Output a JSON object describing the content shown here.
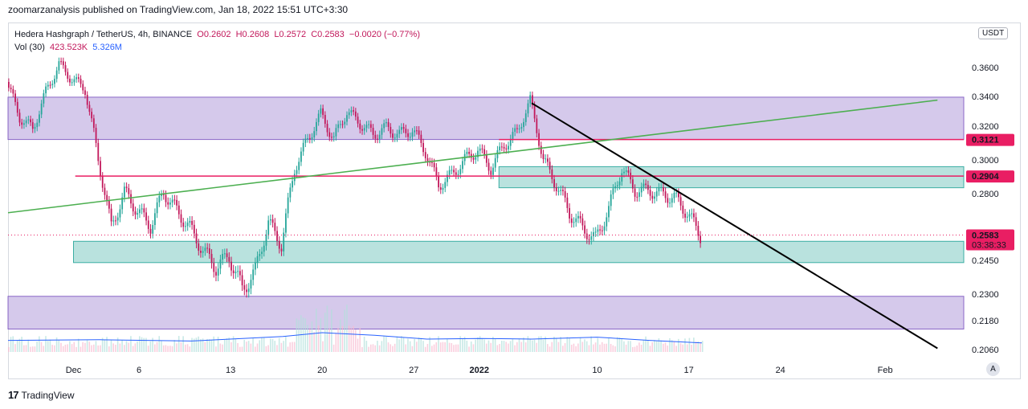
{
  "header": {
    "publish_line": "zoomarzanalysis published on TradingView.com, Jan 18, 2022 15:51 UTC+3:30"
  },
  "legend": {
    "symbol": "Hedera Hashgraph / TetherUS, 4h, BINANCE",
    "open": "O0.2602",
    "high": "H0.2608",
    "low": "L0.2572",
    "close": "C0.2583",
    "change": "−0.0020 (−0.77%)",
    "vol_title": "Vol (30)",
    "vol_value1": "423.523K",
    "vol_value2": "5.326M"
  },
  "currency_tag": "USDT",
  "footer": {
    "brand": "TradingView",
    "logo": "17"
  },
  "auto_scale_label": "A",
  "colors": {
    "up": "#26a69a",
    "down": "#c2185b",
    "purple_zone": "#d1c4e9",
    "green_zone": "#b2dfdb",
    "red_line": "#e91e63",
    "trend_green": "#4caf50",
    "trend_black": "#000000"
  },
  "chart_data": {
    "type": "candlestick",
    "timeframe": "4h",
    "y_axis": {
      "ticks": [
        0.36,
        0.34,
        0.32,
        0.3,
        0.28,
        0.245,
        0.23,
        0.218,
        0.206
      ],
      "tick_labels": [
        "0.3600",
        "0.3400",
        "0.3200",
        "0.3000",
        "0.2800",
        "0.2450",
        "0.2300",
        "0.2180",
        "0.2060"
      ]
    },
    "x_axis": {
      "tick_labels": [
        "Dec",
        "6",
        "13",
        "20",
        "27",
        "2022",
        "10",
        "17",
        "24",
        "Feb"
      ]
    },
    "price_labels": [
      {
        "value": 0.3121,
        "label": "0.3121",
        "color": "#e91e63"
      },
      {
        "value": 0.2904,
        "label": "0.2904",
        "color": "#e91e63"
      },
      {
        "value": 0.2583,
        "label": "0.2583",
        "countdown": "03:38:33",
        "color": "#e91e63"
      }
    ],
    "zones": [
      {
        "kind": "purple",
        "from": 0.3121,
        "to": 0.3395
      },
      {
        "kind": "green",
        "from": 0.2835,
        "to": 0.296
      },
      {
        "kind": "green",
        "from": 0.244,
        "to": 0.255
      },
      {
        "kind": "purple",
        "from": 0.2145,
        "to": 0.229
      }
    ],
    "horizontal_lines": [
      {
        "value": 0.3121,
        "color": "#e91e63"
      },
      {
        "value": 0.2904,
        "color": "#e91e63"
      }
    ],
    "trendlines": [
      {
        "color": "#4caf50",
        "from": [
          "Nov 26",
          0.27
        ],
        "to": [
          "Feb 5",
          0.3375
        ]
      },
      {
        "color": "#000000",
        "from": [
          "Jan 5",
          0.3355
        ],
        "to": [
          "Feb 5",
          0.2065
        ]
      }
    ],
    "price_path": [
      [
        "Nov 26",
        0.35
      ],
      [
        "Nov 27",
        0.326
      ],
      [
        "Nov 28",
        0.318
      ],
      [
        "Nov 29",
        0.343
      ],
      [
        "Nov 30",
        0.362
      ],
      [
        "Dec 1",
        0.352
      ],
      [
        "Dec 2",
        0.345
      ],
      [
        "Dec 3",
        0.3
      ],
      [
        "Dec 4",
        0.262
      ],
      [
        "Dec 5",
        0.281
      ],
      [
        "Dec 6",
        0.271
      ],
      [
        "Dec 7",
        0.263
      ],
      [
        "Dec 8",
        0.281
      ],
      [
        "Dec 9",
        0.271
      ],
      [
        "Dec 10",
        0.262
      ],
      [
        "Dec 11",
        0.25
      ],
      [
        "Dec 12",
        0.242
      ],
      [
        "Dec 13",
        0.247
      ],
      [
        "Dec 14",
        0.232
      ],
      [
        "Dec 15",
        0.24
      ],
      [
        "Dec 16",
        0.265
      ],
      [
        "Dec 17",
        0.253
      ],
      [
        "Dec 18",
        0.295
      ],
      [
        "Dec 19",
        0.312
      ],
      [
        "Dec 20",
        0.328
      ],
      [
        "Dec 21",
        0.312
      ],
      [
        "Dec 22",
        0.33
      ],
      [
        "Dec 23",
        0.322
      ],
      [
        "Dec 24",
        0.315
      ],
      [
        "Dec 25",
        0.319
      ],
      [
        "Dec 26",
        0.315
      ],
      [
        "Dec 27",
        0.318
      ],
      [
        "Dec 28",
        0.305
      ],
      [
        "Dec 29",
        0.285
      ],
      [
        "Dec 30",
        0.291
      ],
      [
        "Dec 31",
        0.3
      ],
      [
        "Jan 1",
        0.306
      ],
      [
        "Jan 2",
        0.295
      ],
      [
        "Jan 3",
        0.309
      ],
      [
        "Jan 4",
        0.316
      ],
      [
        "Jan 5",
        0.337
      ],
      [
        "Jan 6",
        0.3
      ],
      [
        "Jan 7",
        0.285
      ],
      [
        "Jan 8",
        0.27
      ],
      [
        "Jan 9",
        0.262
      ],
      [
        "Jan 10",
        0.256
      ],
      [
        "Jan 11",
        0.272
      ],
      [
        "Jan 12",
        0.295
      ],
      [
        "Jan 13",
        0.282
      ],
      [
        "Jan 14",
        0.282
      ],
      [
        "Jan 15",
        0.28
      ],
      [
        "Jan 16",
        0.278
      ],
      [
        "Jan 17",
        0.27
      ],
      [
        "Jan 18",
        0.258
      ]
    ],
    "volume_ma": [
      [
        "Nov 26",
        0.8
      ],
      [
        "Dec 3",
        0.9
      ],
      [
        "Dec 10",
        0.7
      ],
      [
        "Dec 17",
        1.4
      ],
      [
        "Dec 20",
        2.0
      ],
      [
        "Dec 24",
        1.6
      ],
      [
        "Dec 28",
        1.0
      ],
      [
        "Jan 1",
        1.1
      ],
      [
        "Jan 5",
        1.0
      ],
      [
        "Jan 10",
        1.3
      ],
      [
        "Jan 14",
        0.8
      ],
      [
        "Jan 18",
        0.4
      ]
    ]
  }
}
